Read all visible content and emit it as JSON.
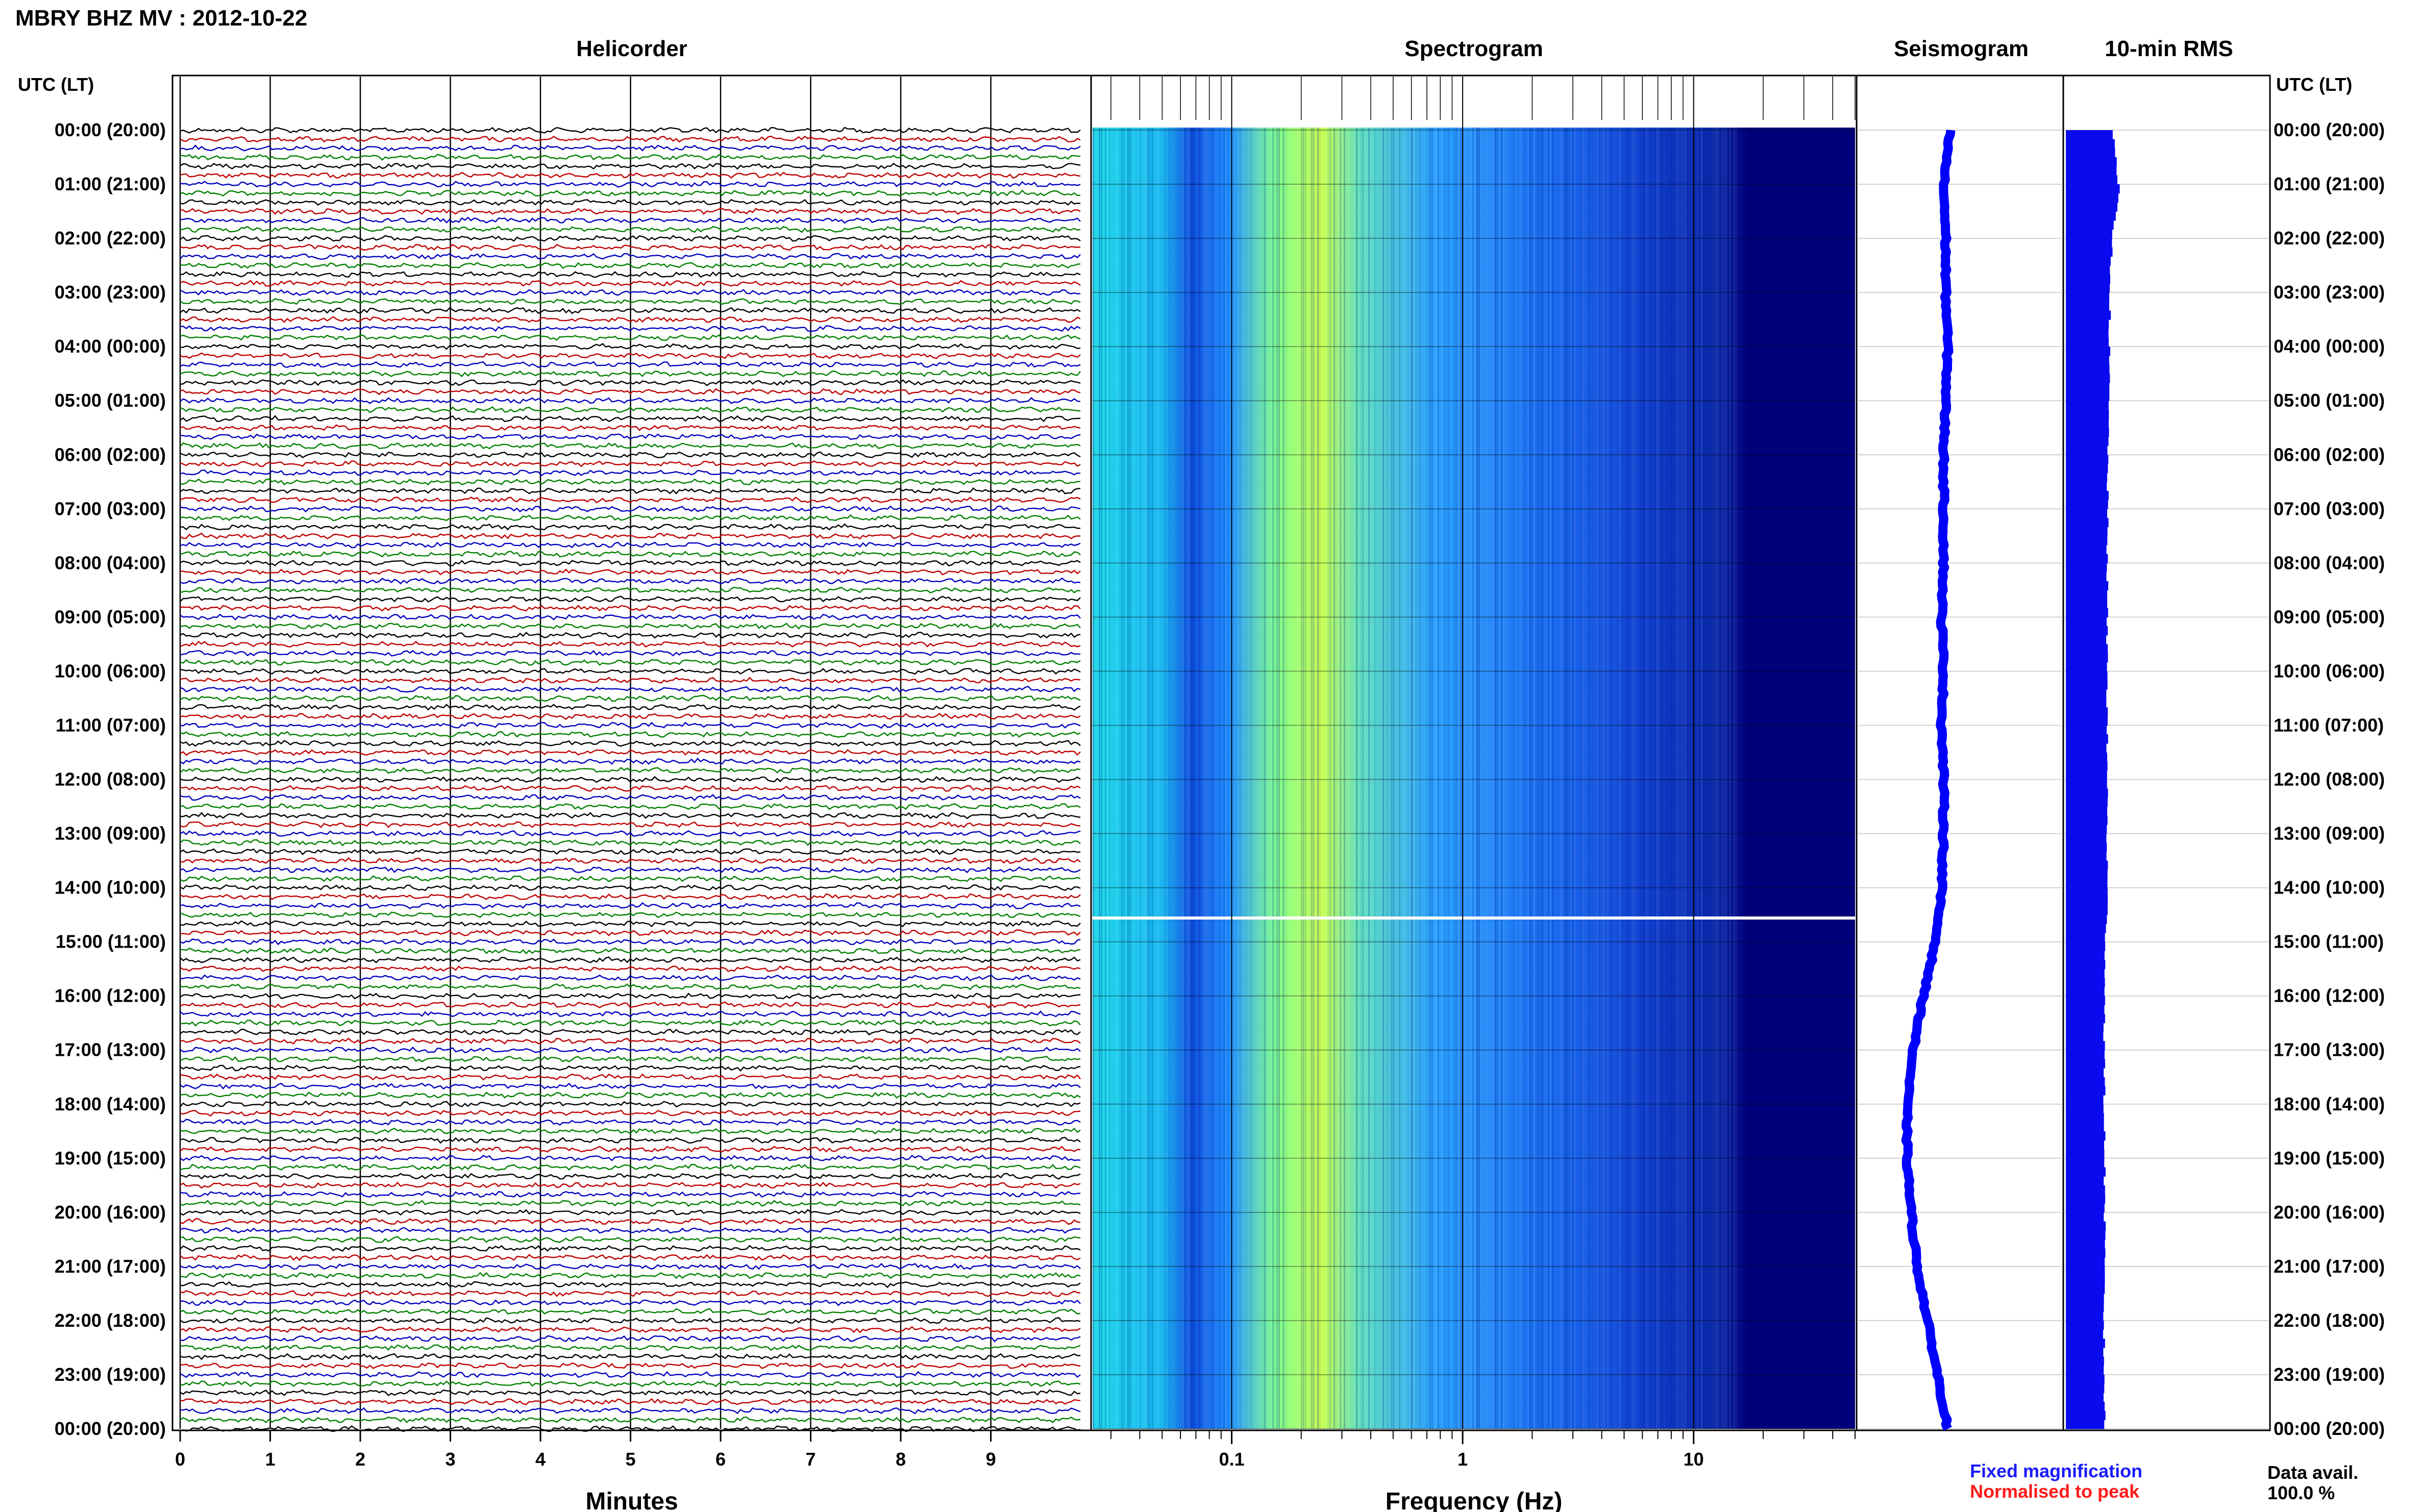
{
  "title": "MBRY BHZ MV : 2012-10-22",
  "panels": {
    "helicorder": "Helicorder",
    "spectrogram": "Spectrogram",
    "seismogram": "Seismogram",
    "rms": "10-min RMS"
  },
  "time_axis_label": "UTC (LT)",
  "hour_labels": [
    "00:00 (20:00)",
    "01:00 (21:00)",
    "02:00 (22:00)",
    "03:00 (23:00)",
    "04:00 (00:00)",
    "05:00 (01:00)",
    "06:00 (02:00)",
    "07:00 (03:00)",
    "08:00 (04:00)",
    "09:00 (05:00)",
    "10:00 (06:00)",
    "11:00 (07:00)",
    "12:00 (08:00)",
    "13:00 (09:00)",
    "14:00 (10:00)",
    "15:00 (11:00)",
    "16:00 (12:00)",
    "17:00 (13:00)",
    "18:00 (14:00)",
    "19:00 (15:00)",
    "20:00 (16:00)",
    "21:00 (17:00)",
    "22:00 (18:00)",
    "23:00 (19:00)",
    "00:00 (20:00)"
  ],
  "helicorder_xlabel": "Minutes",
  "helicorder_xticks": [
    "0",
    "1",
    "2",
    "3",
    "4",
    "5",
    "6",
    "7",
    "8",
    "9"
  ],
  "spectrogram_xlabel": "Frequency (Hz)",
  "spectrogram_xticks": [
    "0.1",
    "1",
    "10"
  ],
  "legend": {
    "fixed": "Fixed magnification",
    "normalised": "Normalised to peak",
    "fixed_color": "#1a1aff",
    "normalised_color": "#ff1a1a"
  },
  "data_avail_label": "Data avail.",
  "data_avail_value": "100.0 %",
  "colors": {
    "trace_cycle": [
      "#000000",
      "#c00000",
      "#0000c0",
      "#008000"
    ],
    "spectrogram_low": "#00007a",
    "spectrogram_mid": "#1f7cff",
    "spectrogram_high": "#d8ff40",
    "seismogram": "#0000ff",
    "rms": "#0a0aee"
  },
  "chart_data": [
    {
      "type": "line",
      "name": "helicorder",
      "xlabel": "Minutes",
      "ylabel": "UTC (LT)",
      "xlim": [
        0,
        10
      ],
      "xticks": [
        0,
        1,
        2,
        3,
        4,
        5,
        6,
        7,
        8,
        9
      ],
      "lines_per_hour": 6,
      "hours": 24
    },
    {
      "type": "heatmap",
      "name": "spectrogram",
      "xlabel": "Frequency (Hz)",
      "xscale": "log",
      "xlim": [
        0.025,
        50
      ],
      "xticks": [
        0.1,
        1,
        10
      ],
      "peak_frequency_hz": 0.25,
      "data_gap_utc": "14:35"
    },
    {
      "type": "line",
      "name": "seismogram",
      "hours": [
        0,
        1,
        2,
        3,
        4,
        5,
        6,
        7,
        8,
        9,
        10,
        11,
        12,
        13,
        14,
        15,
        16,
        17,
        18,
        19,
        20,
        21,
        22,
        23,
        24
      ],
      "relative_offset": [
        0.45,
        0.42,
        0.43,
        0.43,
        0.44,
        0.43,
        0.42,
        0.42,
        0.42,
        0.41,
        0.42,
        0.41,
        0.42,
        0.42,
        0.41,
        0.38,
        0.32,
        0.27,
        0.24,
        0.24,
        0.26,
        0.29,
        0.34,
        0.39,
        0.44
      ]
    },
    {
      "type": "bar",
      "name": "10-min RMS",
      "orientation": "horizontal",
      "hours": [
        0,
        1,
        2,
        3,
        4,
        5,
        6,
        7,
        8,
        9,
        10,
        11,
        12,
        13,
        14,
        15,
        16,
        17,
        18,
        19,
        20,
        21,
        22,
        23,
        24
      ],
      "relative_rms": [
        0.82,
        0.95,
        0.8,
        0.76,
        0.74,
        0.73,
        0.71,
        0.7,
        0.7,
        0.69,
        0.7,
        0.69,
        0.7,
        0.69,
        0.7,
        0.66,
        0.64,
        0.63,
        0.63,
        0.64,
        0.64,
        0.63,
        0.62,
        0.63,
        0.64
      ]
    }
  ]
}
